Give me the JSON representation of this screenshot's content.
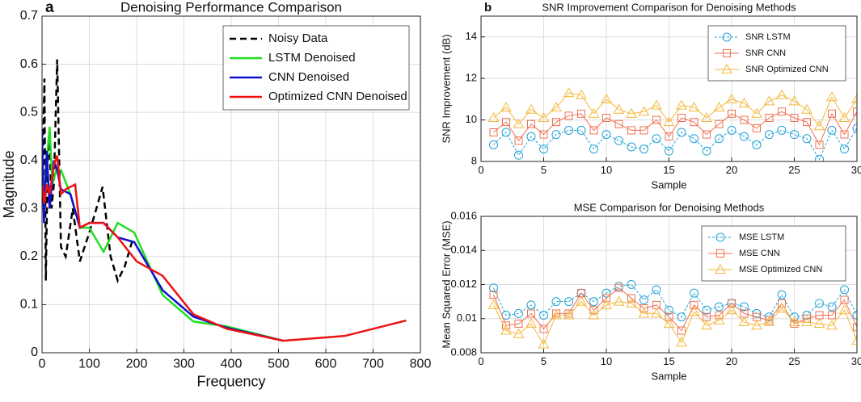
{
  "chart_data": [
    {
      "type": "line",
      "panel_label": "a",
      "title": "Denoising Performance Comparison",
      "x_label": "Frequency",
      "y_label": "Magnitude",
      "xlim": [
        0,
        800
      ],
      "xticks": [
        0,
        100,
        200,
        300,
        400,
        500,
        600,
        700,
        800
      ],
      "ylim": [
        0,
        0.7
      ],
      "yticks": [
        0,
        0.1,
        0.2,
        0.3,
        0.4,
        0.5,
        0.6,
        0.7
      ],
      "grid": true,
      "legend": "upper right",
      "series": [
        {
          "name": "Noisy Data",
          "color": "#000000",
          "linestyle": "dashed",
          "x": [
            0,
            5,
            8,
            12,
            16,
            20,
            25,
            32,
            40,
            50,
            65,
            80,
            100,
            115,
            128,
            145,
            160,
            175,
            190
          ],
          "values": [
            0.3,
            0.57,
            0.15,
            0.4,
            0.45,
            0.3,
            0.35,
            0.61,
            0.22,
            0.2,
            0.3,
            0.19,
            0.25,
            0.3,
            0.345,
            0.2,
            0.15,
            0.18,
            0.23
          ]
        },
        {
          "name": "LSTM Denoised",
          "color": "#22dd22",
          "linestyle": "solid",
          "x": [
            0,
            5,
            10,
            16,
            22,
            30,
            40,
            60,
            80,
            100,
            130,
            160,
            195,
            255,
            320,
            390,
            510
          ],
          "values": [
            0.3,
            0.35,
            0.4,
            0.47,
            0.35,
            0.38,
            0.38,
            0.33,
            0.26,
            0.26,
            0.21,
            0.27,
            0.25,
            0.12,
            0.065,
            0.055,
            0.025
          ]
        },
        {
          "name": "CNN Denoised",
          "color": "#1010cc",
          "linestyle": "solid",
          "x": [
            0,
            4,
            10,
            16,
            25,
            32,
            40,
            60,
            80,
            100,
            130,
            160,
            195,
            255,
            320,
            390,
            510
          ],
          "values": [
            0.46,
            0.27,
            0.42,
            0.3,
            0.4,
            0.38,
            0.34,
            0.33,
            0.26,
            0.27,
            0.27,
            0.24,
            0.23,
            0.13,
            0.075,
            0.052,
            0.025
          ]
        },
        {
          "name": "Optimized CNN Denoised",
          "color": "#ee1111",
          "linestyle": "solid",
          "x": [
            0,
            5,
            10,
            16,
            25,
            32,
            40,
            50,
            70,
            80,
            100,
            130,
            160,
            200,
            255,
            320,
            390,
            510,
            640,
            770
          ],
          "values": [
            0.35,
            0.31,
            0.35,
            0.33,
            0.39,
            0.41,
            0.33,
            0.34,
            0.35,
            0.26,
            0.27,
            0.27,
            0.24,
            0.19,
            0.16,
            0.08,
            0.05,
            0.025,
            0.035,
            0.067
          ]
        }
      ]
    },
    {
      "type": "line",
      "panel_label": "b",
      "title": "SNR Improvement Comparison for Denoising Methods",
      "x_label": "Sample",
      "y_label": "SNR Improvement (dB)",
      "xlim": [
        0,
        30
      ],
      "xticks": [
        0,
        5,
        10,
        15,
        20,
        25,
        30
      ],
      "ylim": [
        8,
        15
      ],
      "yticks": [
        8,
        10,
        12,
        14
      ],
      "grid": true,
      "legend": "upper right",
      "x": [
        1,
        2,
        3,
        4,
        5,
        6,
        7,
        8,
        9,
        10,
        11,
        12,
        13,
        14,
        15,
        16,
        17,
        18,
        19,
        20,
        21,
        22,
        23,
        24,
        25,
        26,
        27,
        28,
        29,
        30
      ],
      "series": [
        {
          "name": "SNR LSTM",
          "color": "#1fa3d9",
          "linestyle": "dashed",
          "marker": "circle",
          "values": [
            8.8,
            9.4,
            8.3,
            9.2,
            8.6,
            9.3,
            9.5,
            9.5,
            8.6,
            9.3,
            9.0,
            8.7,
            8.6,
            9.1,
            8.5,
            9.4,
            9.1,
            8.5,
            9.1,
            9.5,
            9.2,
            8.8,
            9.3,
            9.5,
            9.3,
            9.1,
            8.1,
            9.5,
            8.6,
            9.6
          ]
        },
        {
          "name": "SNR CNN",
          "color": "#f07050",
          "linestyle": "solid",
          "marker": "square",
          "values": [
            9.4,
            9.9,
            9.0,
            9.8,
            9.3,
            9.9,
            10.2,
            10.3,
            9.5,
            10.1,
            9.8,
            9.5,
            9.5,
            10.0,
            9.2,
            10.1,
            9.9,
            9.3,
            9.8,
            10.3,
            10.0,
            9.6,
            10.1,
            10.4,
            10.1,
            9.9,
            8.8,
            10.3,
            9.3,
            10.4
          ]
        },
        {
          "name": "SNR Optimized CNN",
          "color": "#f5b73a",
          "linestyle": "solid",
          "marker": "triangle",
          "values": [
            10.1,
            10.6,
            9.8,
            10.5,
            10.1,
            10.6,
            11.3,
            11.2,
            10.3,
            11.0,
            10.5,
            10.3,
            10.4,
            10.7,
            9.9,
            10.7,
            10.6,
            10.1,
            10.6,
            11.0,
            10.8,
            10.3,
            10.9,
            11.2,
            10.9,
            10.5,
            9.7,
            11.1,
            10.1,
            11.0
          ]
        }
      ]
    },
    {
      "type": "line",
      "title": "MSE Comparison for Denoising Methods",
      "x_label": "Sample",
      "y_label": "Mean Squared Error (MSE)",
      "xlim": [
        0,
        30
      ],
      "xticks": [
        0,
        5,
        10,
        15,
        20,
        25,
        30
      ],
      "ylim": [
        0.008,
        0.016
      ],
      "yticks": [
        0.008,
        0.01,
        0.012,
        0.014,
        0.016
      ],
      "grid": true,
      "legend": "upper right",
      "x": [
        1,
        2,
        3,
        4,
        5,
        6,
        7,
        8,
        9,
        10,
        11,
        12,
        13,
        14,
        15,
        16,
        17,
        18,
        19,
        20,
        21,
        22,
        23,
        24,
        25,
        26,
        27,
        28,
        29,
        30
      ],
      "series": [
        {
          "name": "MSE LSTM",
          "color": "#1fa3d9",
          "linestyle": "dashed",
          "marker": "circle",
          "values": [
            0.0118,
            0.0102,
            0.0103,
            0.0108,
            0.0102,
            0.011,
            0.011,
            0.0115,
            0.011,
            0.0115,
            0.0119,
            0.012,
            0.0111,
            0.0117,
            0.0105,
            0.0101,
            0.0115,
            0.0105,
            0.0107,
            0.0109,
            0.0107,
            0.0103,
            0.0101,
            0.0114,
            0.0101,
            0.0102,
            0.0109,
            0.0107,
            0.0117,
            0.0102
          ]
        },
        {
          "name": "MSE CNN",
          "color": "#f07050",
          "linestyle": "solid",
          "marker": "square",
          "values": [
            0.0114,
            0.0096,
            0.0097,
            0.0103,
            0.0094,
            0.0103,
            0.0103,
            0.0115,
            0.0105,
            0.0112,
            0.0118,
            0.0112,
            0.0106,
            0.0108,
            0.0101,
            0.0093,
            0.0108,
            0.0101,
            0.0102,
            0.0109,
            0.0103,
            0.0101,
            0.0099,
            0.0109,
            0.0097,
            0.01,
            0.0102,
            0.0102,
            0.0111,
            0.0095
          ]
        },
        {
          "name": "MSE Optimized CNN",
          "color": "#f5b73a",
          "linestyle": "solid",
          "marker": "triangle",
          "values": [
            0.0108,
            0.0093,
            0.0091,
            0.0097,
            0.0085,
            0.0102,
            0.0102,
            0.011,
            0.0102,
            0.0108,
            0.011,
            0.0109,
            0.0103,
            0.0103,
            0.0097,
            0.0086,
            0.0104,
            0.0096,
            0.0099,
            0.0105,
            0.0098,
            0.0096,
            0.0098,
            0.0106,
            0.0098,
            0.0098,
            0.0097,
            0.0096,
            0.0105,
            0.0087
          ]
        }
      ]
    }
  ]
}
